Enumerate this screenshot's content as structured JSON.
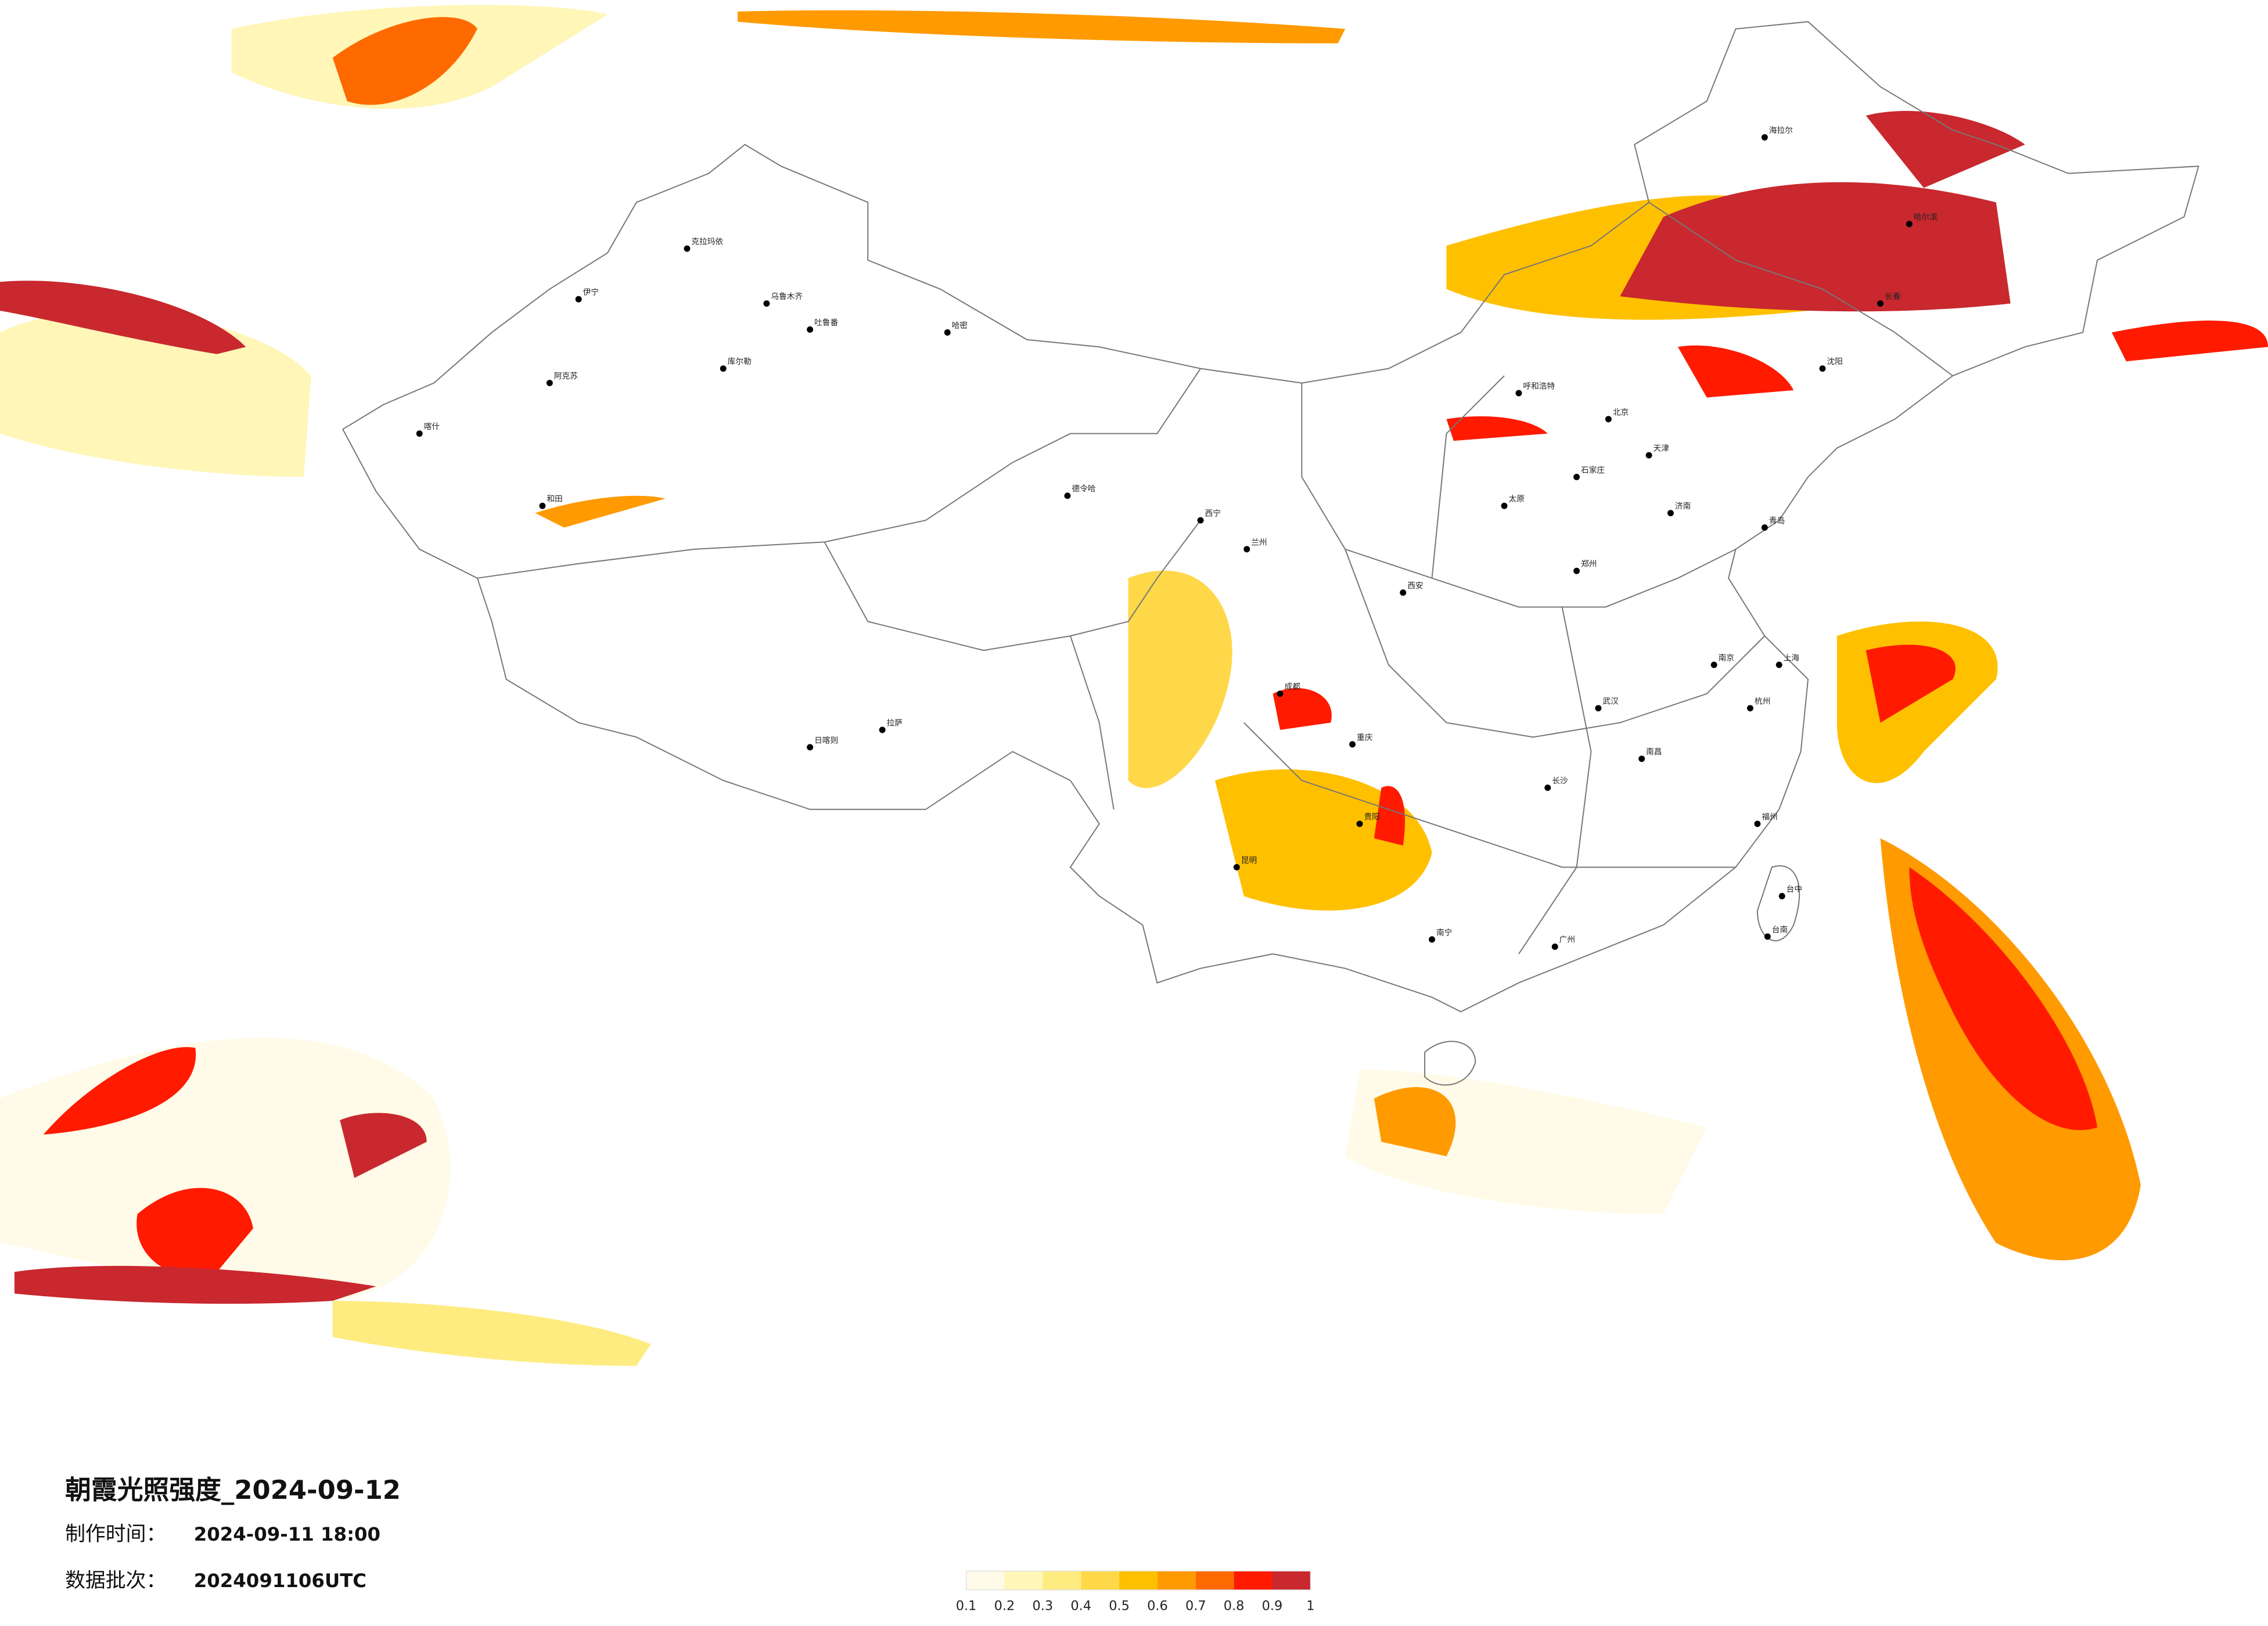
{
  "title": "朝霞光照强度_2024-09-12",
  "made_time_label": "制作时间：",
  "made_time": "2024-09-11 18:00",
  "batch_label": "数据批次：",
  "batch": "2024091106UTC",
  "legend": {
    "colors": [
      "#fffbe8",
      "#fff6b8",
      "#ffec80",
      "#ffd84a",
      "#ffc000",
      "#ff9a00",
      "#ff6a00",
      "#ff1a00",
      "#c8282e"
    ],
    "labels": [
      "0.1",
      "0.2",
      "0.3",
      "0.4",
      "0.5",
      "0.6",
      "0.7",
      "0.8",
      "0.9",
      "1"
    ]
  },
  "cities": [
    "克拉玛依",
    "乌鲁木齐",
    "吐鲁番",
    "哈密",
    "库尔勒",
    "阿克苏",
    "喀什",
    "和田",
    "伊宁",
    "日喀则",
    "拉萨",
    "德令哈",
    "西宁",
    "兰州",
    "呼和浩特",
    "北京",
    "天津",
    "石家庄",
    "太原",
    "西安",
    "郑州",
    "济南",
    "青岛",
    "南京",
    "上海",
    "杭州",
    "武汉",
    "长沙",
    "南昌",
    "福州",
    "广州",
    "南宁",
    "昆明",
    "贵阳",
    "成都",
    "重庆",
    "沈阳",
    "长春",
    "哈尔滨",
    "海拉尔",
    "台中",
    "台南"
  ]
}
